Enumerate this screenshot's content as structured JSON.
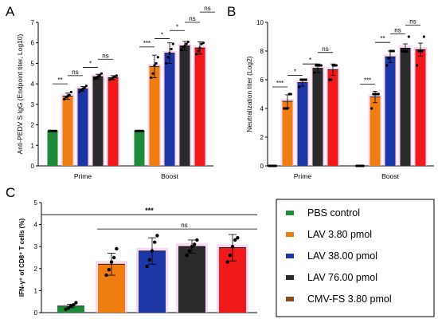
{
  "colors": {
    "pbs": "#1e8a3a",
    "lav_3_8": "#f07d12",
    "lav_38": "#1c36a6",
    "lav_76": "#2b2b2b",
    "cmvfs": "#f01a1a",
    "halo": "#f4b8e8",
    "errbar": "#000000"
  },
  "chart_data": [
    {
      "panel": "A",
      "type": "bar",
      "ylabel": "Anti-PEDV S IgG (Endpoint titer, Log10)",
      "ylim": [
        0,
        7
      ],
      "yticks": [
        "0",
        "1",
        "2",
        "3",
        "4",
        "5",
        "6",
        "7"
      ],
      "categories": [
        "Prime",
        "Boost"
      ],
      "series": [
        {
          "key": "pbs",
          "values": [
            1.7,
            1.7
          ],
          "err": [
            0.0,
            0.0
          ]
        },
        {
          "key": "lav_3_8",
          "values": [
            3.4,
            4.85
          ],
          "err": [
            0.15,
            0.55
          ]
        },
        {
          "key": "lav_38",
          "values": [
            3.75,
            5.5
          ],
          "err": [
            0.12,
            0.5
          ]
        },
        {
          "key": "lav_76",
          "values": [
            4.35,
            5.85
          ],
          "err": [
            0.12,
            0.22
          ]
        },
        {
          "key": "cmvfs",
          "values": [
            4.3,
            5.75
          ],
          "err": [
            0.1,
            0.3
          ]
        }
      ],
      "points": [
        [
          [
            1.7,
            1.7,
            1.7,
            1.7,
            1.7
          ],
          [
            1.7,
            1.7,
            1.7,
            1.7,
            1.7
          ]
        ],
        [
          [
            3.25,
            3.35,
            3.4,
            3.45,
            3.6
          ],
          [
            4.3,
            4.5,
            4.9,
            5.0,
            5.3
          ]
        ],
        [
          [
            3.6,
            3.7,
            3.75,
            3.8,
            3.9
          ],
          [
            5.0,
            5.3,
            5.5,
            5.7,
            5.95
          ]
        ],
        [
          [
            4.25,
            4.3,
            4.35,
            4.4,
            4.5
          ],
          [
            5.65,
            5.8,
            5.85,
            5.95,
            6.05
          ]
        ],
        [
          [
            4.2,
            4.25,
            4.3,
            4.35,
            4.4
          ],
          [
            5.45,
            5.6,
            5.75,
            5.95,
            6.0
          ]
        ]
      ],
      "sig": [
        {
          "group": 0,
          "from": 0,
          "to": 1,
          "y": 4.0,
          "label": "**"
        },
        {
          "group": 0,
          "from": 1,
          "to": 2,
          "y": 4.4,
          "label": "ns"
        },
        {
          "group": 0,
          "from": 2,
          "to": 3,
          "y": 4.8,
          "label": "*"
        },
        {
          "group": 0,
          "from": 3,
          "to": 4,
          "y": 5.2,
          "label": "ns"
        },
        {
          "group": 1,
          "from": 0,
          "to": 1,
          "y": 5.8,
          "label": "***"
        },
        {
          "group": 1,
          "from": 1,
          "to": 2,
          "y": 6.2,
          "label": "*"
        },
        {
          "group": 1,
          "from": 2,
          "to": 3,
          "y": 6.6,
          "label": "*"
        },
        {
          "group": 1,
          "from": 3,
          "to": 4,
          "y": 7.0,
          "label": "ns"
        },
        {
          "group": 1,
          "from": 4,
          "to": 5,
          "y": 7.5,
          "label": "ns"
        }
      ]
    },
    {
      "panel": "B",
      "type": "bar",
      "ylabel": "Neutralization titer (Log2)",
      "ylim": [
        0,
        10
      ],
      "yticks": [
        "0",
        "2",
        "4",
        "6",
        "8",
        "10"
      ],
      "categories": [
        "Prime",
        "Boost"
      ],
      "series": [
        {
          "key": "pbs",
          "values": [
            0.0,
            0.0
          ],
          "err": [
            0.0,
            0.0
          ]
        },
        {
          "key": "lav_3_8",
          "values": [
            4.5,
            4.8
          ],
          "err": [
            0.45,
            0.4
          ]
        },
        {
          "key": "lav_38",
          "values": [
            5.8,
            7.6
          ],
          "err": [
            0.25,
            0.4
          ]
        },
        {
          "key": "lav_76",
          "values": [
            6.8,
            8.2
          ],
          "err": [
            0.3,
            0.3
          ]
        },
        {
          "key": "cmvfs",
          "values": [
            6.7,
            8.1
          ],
          "err": [
            0.4,
            0.45
          ]
        }
      ],
      "points": [
        [
          [
            0.0,
            0.0,
            0.0,
            0.0,
            0.0
          ],
          [
            0.0,
            0.0,
            0.0,
            0.0,
            0.0
          ]
        ],
        [
          [
            4.0,
            4.0,
            4.0,
            5.0,
            5.0
          ],
          [
            4.0,
            5.0,
            5.0,
            5.0,
            5.0
          ]
        ],
        [
          [
            5.5,
            6.0,
            6.0,
            6.0,
            6.0
          ],
          [
            7.0,
            7.5,
            8.0,
            8.0,
            8.0
          ]
        ],
        [
          [
            6.5,
            7.0,
            7.0,
            7.0,
            7.0
          ],
          [
            8.0,
            8.0,
            8.0,
            8.0,
            9.0
          ]
        ],
        [
          [
            6.0,
            6.0,
            7.0,
            7.0,
            7.0
          ],
          [
            7.0,
            8.0,
            8.0,
            8.0,
            9.0
          ]
        ]
      ],
      "sig": [
        {
          "group": 0,
          "from": 0,
          "to": 1,
          "y": 5.5,
          "label": "***"
        },
        {
          "group": 0,
          "from": 1,
          "to": 2,
          "y": 6.3,
          "label": "*"
        },
        {
          "group": 0,
          "from": 2,
          "to": 3,
          "y": 7.1,
          "label": "*"
        },
        {
          "group": 0,
          "from": 3,
          "to": 4,
          "y": 7.9,
          "label": "ns"
        },
        {
          "group": 1,
          "from": 0,
          "to": 1,
          "y": 5.7,
          "label": "***"
        },
        {
          "group": 1,
          "from": 1,
          "to": 2,
          "y": 8.6,
          "label": "**"
        },
        {
          "group": 1,
          "from": 2,
          "to": 3,
          "y": 9.2,
          "label": "ns"
        },
        {
          "group": 1,
          "from": 3,
          "to": 4,
          "y": 9.8,
          "label": "ns"
        }
      ]
    },
    {
      "panel": "C",
      "type": "bar",
      "ylabel": "IFN-γ⁺ of CD8⁺ T cells (%)",
      "ylim": [
        0,
        5
      ],
      "yticks": [
        "0",
        "1",
        "2",
        "3",
        "4",
        "5"
      ],
      "series": [
        {
          "key": "pbs",
          "value": 0.3,
          "err": 0.08
        },
        {
          "key": "lav_3_8",
          "value": 2.2,
          "err": 0.5
        },
        {
          "key": "lav_38",
          "value": 2.8,
          "err": 0.6
        },
        {
          "key": "lav_76",
          "value": 3.0,
          "err": 0.3
        },
        {
          "key": "cmvfs",
          "value": 2.95,
          "err": 0.6
        }
      ],
      "points": [
        [
          0.15,
          0.2,
          0.3,
          0.35,
          0.45
        ],
        [
          1.7,
          1.95,
          2.3,
          2.5,
          2.9
        ],
        [
          2.1,
          2.4,
          2.8,
          3.2,
          3.5
        ],
        [
          2.6,
          2.8,
          3.0,
          3.1,
          3.3
        ],
        [
          2.3,
          2.6,
          3.0,
          3.3,
          3.4
        ]
      ],
      "sig": [
        {
          "label": "***",
          "y": 4.45
        },
        {
          "label": "ns",
          "y": 3.8
        }
      ]
    }
  ],
  "panels": {
    "a_letter": "A",
    "b_letter": "B",
    "c_letter": "C"
  },
  "legend": {
    "items": [
      {
        "key": "pbs",
        "label": "PBS control"
      },
      {
        "key": "lav_3_8",
        "label": "LAV 3.80 pmol"
      },
      {
        "key": "lav_38",
        "label": "LAV 38.00 pmol"
      },
      {
        "key": "lav_76",
        "label": "LAV 76.00 pmol"
      },
      {
        "key": "cmvfs",
        "label": "CMV-FS 3.80 pmol"
      }
    ],
    "cmv_swatch": "#8a4b1a"
  }
}
